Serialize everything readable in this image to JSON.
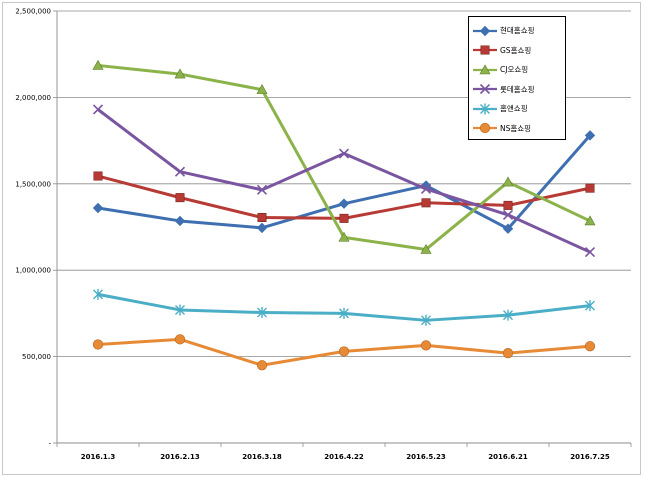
{
  "chart_data": {
    "type": "line",
    "title": "",
    "xlabel": "",
    "ylabel": "",
    "categories": [
      "2016.1.3",
      "2016.2.13",
      "2016.3.18",
      "2016.4.22",
      "2016.5.23",
      "2016.6.21",
      "2016.7.25"
    ],
    "ylim": [
      0,
      2500000
    ],
    "yticks": [
      0,
      500000,
      1000000,
      1500000,
      2000000,
      2500000
    ],
    "ytick_labels": [
      "-",
      "500,000",
      "1,000,000",
      "1,500,000",
      "2,000,000",
      "2,500,000"
    ],
    "grid": true,
    "legend_position": "top-right",
    "series": [
      {
        "name": "현대홈쇼핑",
        "color": "#3e6fb0",
        "marker": "diamond",
        "values": [
          1360000,
          1285000,
          1245000,
          1385000,
          1490000,
          1240000,
          1780000
        ]
      },
      {
        "name": "GS홈쇼핑",
        "color": "#b83a35",
        "marker": "square",
        "values": [
          1545000,
          1420000,
          1305000,
          1300000,
          1390000,
          1375000,
          1475000
        ]
      },
      {
        "name": "CJ오쇼핑",
        "color": "#8cb24a",
        "marker": "triangle",
        "values": [
          2185000,
          2135000,
          2045000,
          1190000,
          1120000,
          1510000,
          1285000
        ]
      },
      {
        "name": "롯데홈쇼핑",
        "color": "#7a55a0",
        "marker": "x",
        "values": [
          1930000,
          1570000,
          1465000,
          1675000,
          1470000,
          1320000,
          1105000
        ]
      },
      {
        "name": "홈앤쇼핑",
        "color": "#4aaec6",
        "marker": "asterisk",
        "values": [
          860000,
          770000,
          755000,
          750000,
          710000,
          740000,
          795000
        ]
      },
      {
        "name": "NS홈쇼핑",
        "color": "#e78a35",
        "marker": "circle",
        "values": [
          570000,
          600000,
          450000,
          530000,
          565000,
          520000,
          560000
        ]
      }
    ]
  }
}
